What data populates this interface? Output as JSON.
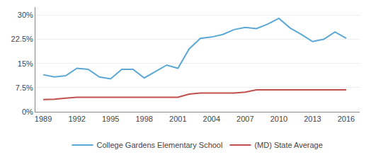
{
  "chart_data": {
    "type": "line",
    "x": [
      1989,
      1990,
      1991,
      1992,
      1993,
      1994,
      1995,
      1996,
      1997,
      1998,
      1999,
      2000,
      2001,
      2002,
      2003,
      2004,
      2005,
      2006,
      2007,
      2008,
      2009,
      2010,
      2011,
      2012,
      2013,
      2014,
      2015,
      2016
    ],
    "series": [
      {
        "name": "College Gardens Elementary School",
        "color": "#5ba8d4",
        "values": [
          11.5,
          10.8,
          11.2,
          13.5,
          13.2,
          10.8,
          10.2,
          13.2,
          13.2,
          10.5,
          12.5,
          14.5,
          13.5,
          19.5,
          22.8,
          23.2,
          24.0,
          25.5,
          26.2,
          25.8,
          27.2,
          29.0,
          26.0,
          24.0,
          21.8,
          22.5,
          24.8,
          22.8
        ]
      },
      {
        "name": "(MD) State Average",
        "color": "#c0504d",
        "values": [
          3.8,
          3.9,
          4.2,
          4.5,
          4.5,
          4.5,
          4.5,
          4.5,
          4.5,
          4.5,
          4.5,
          4.5,
          4.5,
          5.5,
          5.8,
          5.8,
          5.8,
          5.8,
          6.1,
          6.8,
          6.8,
          6.8,
          6.8,
          6.8,
          6.8,
          6.8,
          6.8,
          6.8
        ]
      }
    ],
    "xlim": [
      1988.3,
      2017.2
    ],
    "xticks": [
      1989,
      1992,
      1995,
      1998,
      2001,
      2004,
      2007,
      2010,
      2013,
      2016
    ],
    "ylim": [
      0,
      32.5
    ],
    "yticks": [
      {
        "value": 0,
        "label": "0%"
      },
      {
        "value": 7.5,
        "label": "7.5%"
      },
      {
        "value": 15,
        "label": "15%"
      },
      {
        "value": 22.5,
        "label": "22.5%"
      },
      {
        "value": 30,
        "label": "30%"
      }
    ],
    "grid": "y",
    "legend": "bottom"
  }
}
